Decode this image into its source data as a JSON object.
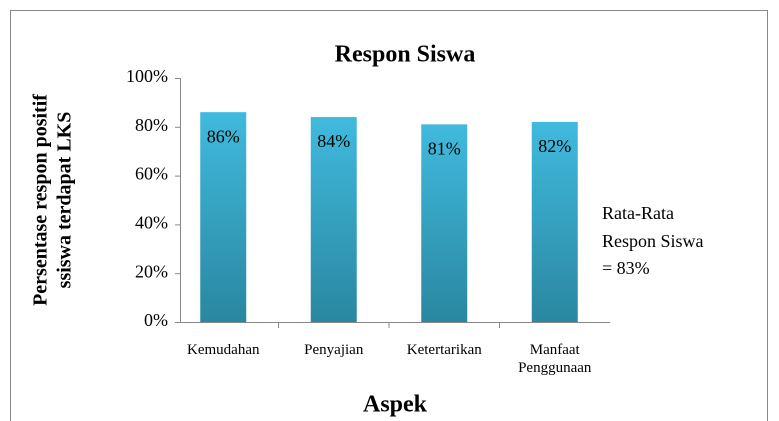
{
  "chart_data": {
    "type": "bar",
    "title": "Respon Siswa",
    "x_label": "Aspek",
    "y_label": [
      "Persentase respon positif",
      "ssiswa terdapat LKS"
    ],
    "annotation": [
      "Rata-Rata",
      "Respon Siswa",
      "= 83%"
    ],
    "categories": [
      "Kemudahan",
      "Penyajian",
      "Ketertarikan",
      "Manfaat Penggunaan"
    ],
    "values": [
      86,
      84,
      81,
      82
    ],
    "value_labels": [
      "86%",
      "84%",
      "81%",
      "82%"
    ],
    "color": [
      "#40bade",
      "#2a87a0"
    ],
    "ylim": [
      0,
      100
    ],
    "yticks": [
      {
        "value": 0,
        "label": "0%"
      },
      {
        "value": 20,
        "label": "20%"
      },
      {
        "value": 40,
        "label": "40%"
      },
      {
        "value": 60,
        "label": "60%"
      },
      {
        "value": 80,
        "label": "80%"
      },
      {
        "value": 100,
        "label": "100%"
      }
    ],
    "grid": false
  }
}
